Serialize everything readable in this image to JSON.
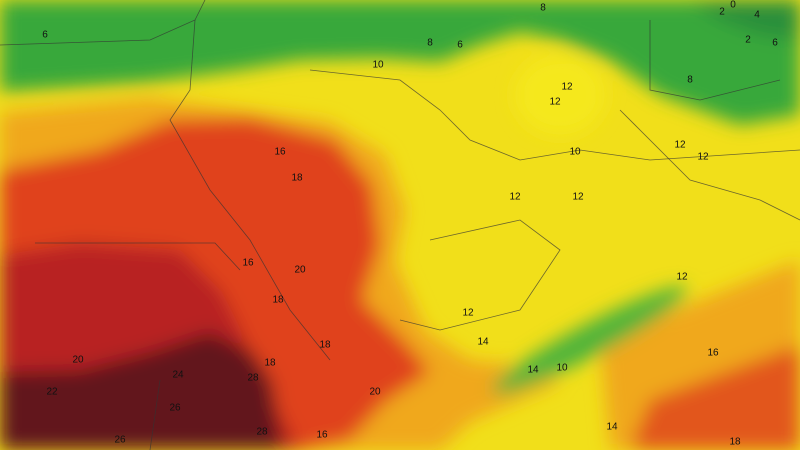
{
  "contour_labels": [
    6,
    8,
    8,
    6,
    2,
    0,
    4,
    2,
    6,
    8,
    10,
    12,
    12,
    10,
    12,
    12,
    16,
    18,
    12,
    12,
    16,
    20,
    12,
    18,
    12,
    14,
    18,
    16,
    20,
    24,
    18,
    14,
    10,
    28,
    22,
    20,
    26,
    14,
    28,
    26,
    16,
    18
  ]
}
